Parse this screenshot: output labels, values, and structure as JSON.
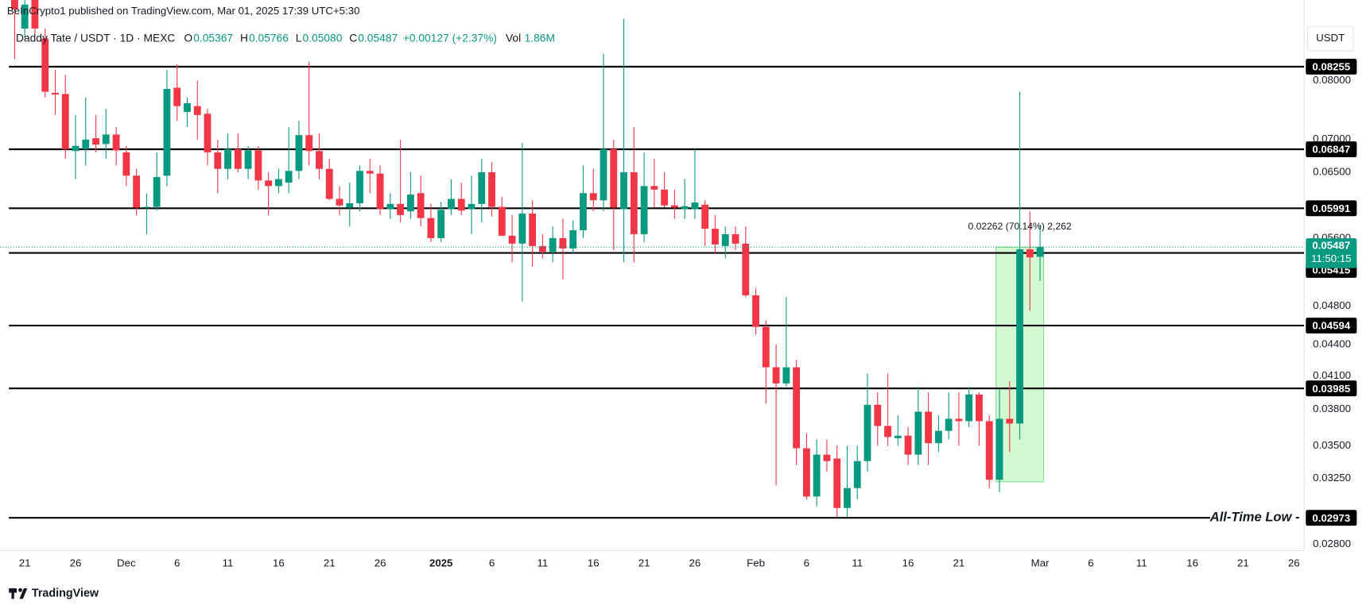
{
  "header": {
    "publisher": "BeInCrypto1 published on TradingView.com, Mar 01, 2025 17:39 UTC+5:30",
    "brand": "TradingView"
  },
  "legend": {
    "symbol": "Daddy Tate / USDT · 1D · MEXC",
    "items": [
      {
        "key": "O",
        "value": "0.05367"
      },
      {
        "key": "H",
        "value": "0.05766"
      },
      {
        "key": "L",
        "value": "0.05080"
      },
      {
        "key": "C",
        "value": "0.05487"
      }
    ],
    "change": "+0.00127 (+2.37%)",
    "volume_key": "Vol",
    "volume": "1.86M"
  },
  "chart_data": {
    "type": "candlestick",
    "currency": "USDT",
    "log_scale": true,
    "up_color": "#089981",
    "down_color": "#f23645",
    "x": [
      "2024-11-20",
      "2024-11-21",
      "2024-11-22",
      "2024-11-23",
      "2024-11-24",
      "2024-11-25",
      "2024-11-26",
      "2024-11-27",
      "2024-11-28",
      "2024-11-29",
      "2024-11-30",
      "2024-12-01",
      "2024-12-02",
      "2024-12-03",
      "2024-12-04",
      "2024-12-05",
      "2024-12-06",
      "2024-12-07",
      "2024-12-08",
      "2024-12-09",
      "2024-12-10",
      "2024-12-11",
      "2024-12-12",
      "2024-12-13",
      "2024-12-14",
      "2024-12-15",
      "2024-12-16",
      "2024-12-17",
      "2024-12-18",
      "2024-12-19",
      "2024-12-20",
      "2024-12-21",
      "2024-12-22",
      "2024-12-23",
      "2024-12-24",
      "2024-12-25",
      "2024-12-26",
      "2024-12-27",
      "2024-12-28",
      "2024-12-29",
      "2024-12-30",
      "2024-12-31",
      "2025-01-01",
      "2025-01-02",
      "2025-01-03",
      "2025-01-04",
      "2025-01-05",
      "2025-01-06",
      "2025-01-07",
      "2025-01-08",
      "2025-01-09",
      "2025-01-10",
      "2025-01-11",
      "2025-01-12",
      "2025-01-13",
      "2025-01-14",
      "2025-01-15",
      "2025-01-16",
      "2025-01-17",
      "2025-01-18",
      "2025-01-19",
      "2025-01-20",
      "2025-01-21",
      "2025-01-22",
      "2025-01-23",
      "2025-01-24",
      "2025-01-25",
      "2025-01-26",
      "2025-01-27",
      "2025-01-28",
      "2025-01-29",
      "2025-01-30",
      "2025-01-31",
      "2025-02-01",
      "2025-02-02",
      "2025-02-03",
      "2025-02-04",
      "2025-02-05",
      "2025-02-06",
      "2025-02-07",
      "2025-02-08",
      "2025-02-09",
      "2025-02-10",
      "2025-02-11",
      "2025-02-12",
      "2025-02-13",
      "2025-02-14",
      "2025-02-15",
      "2025-02-16",
      "2025-02-17",
      "2025-02-18",
      "2025-02-19",
      "2025-02-20",
      "2025-02-21",
      "2025-02-22",
      "2025-02-23",
      "2025-02-24",
      "2025-02-25",
      "2025-02-26",
      "2025-02-27",
      "2025-02-28",
      "2025-03-01"
    ],
    "open": [
      0.099,
      0.09,
      0.096,
      0.088,
      0.0778,
      0.0776,
      0.0682,
      0.0685,
      0.0702,
      0.0693,
      0.0708,
      0.068,
      0.0645,
      0.06,
      0.0601,
      0.0645,
      0.0787,
      0.0745,
      0.0755,
      0.0742,
      0.068,
      0.0655,
      0.0685,
      0.0655,
      0.0683,
      0.0638,
      0.063,
      0.0635,
      0.0652,
      0.0707,
      0.0682,
      0.0655,
      0.0612,
      0.06,
      0.0606,
      0.0652,
      0.0648,
      0.0598,
      0.0605,
      0.0595,
      0.062,
      0.0586,
      0.056,
      0.0598,
      0.0612,
      0.0598,
      0.0605,
      0.065,
      0.0601,
      0.0563,
      0.0553,
      0.0592,
      0.055,
      0.0543,
      0.056,
      0.0547,
      0.057,
      0.062,
      0.061,
      0.0685,
      0.0598,
      0.065,
      0.0565,
      0.063,
      0.0625,
      0.0603,
      0.0598,
      0.0598,
      0.0604,
      0.0572,
      0.055,
      0.0565,
      0.0553,
      0.0492,
      0.0458,
      0.0418,
      0.0403,
      0.0418,
      0.0348,
      0.0312,
      0.0343,
      0.034,
      0.0304,
      0.0318,
      0.0338,
      0.0384,
      0.0366,
      0.0356,
      0.0358,
      0.0343,
      0.0378,
      0.0352,
      0.0362,
      0.0372,
      0.037,
      0.0393,
      0.037,
      0.0324,
      0.0372,
      0.0368,
      0.0546,
      0.05367
    ],
    "high": [
      0.101,
      0.097,
      0.098,
      0.09,
      0.082,
      0.081,
      0.074,
      0.077,
      0.074,
      0.075,
      0.072,
      0.069,
      0.0655,
      0.062,
      0.068,
      0.082,
      0.083,
      0.077,
      0.08,
      0.075,
      0.07,
      0.071,
      0.071,
      0.069,
      0.069,
      0.065,
      0.0655,
      0.072,
      0.073,
      0.0835,
      0.071,
      0.067,
      0.063,
      0.0635,
      0.066,
      0.067,
      0.066,
      0.062,
      0.07,
      0.065,
      0.0645,
      0.0605,
      0.0608,
      0.064,
      0.0635,
      0.0645,
      0.067,
      0.0665,
      0.0615,
      0.059,
      0.0695,
      0.061,
      0.0565,
      0.0575,
      0.0585,
      0.0583,
      0.066,
      0.0655,
      0.085,
      0.07,
      0.092,
      0.072,
      0.068,
      0.067,
      0.065,
      0.0625,
      0.064,
      0.0685,
      0.061,
      0.059,
      0.0575,
      0.0575,
      0.0575,
      0.05,
      0.0465,
      0.044,
      0.049,
      0.0425,
      0.036,
      0.0355,
      0.0355,
      0.035,
      0.035,
      0.035,
      0.0412,
      0.0395,
      0.0412,
      0.0375,
      0.0365,
      0.04,
      0.0395,
      0.0375,
      0.0395,
      0.0395,
      0.04,
      0.0395,
      0.0375,
      0.0398,
      0.0405,
      0.078,
      0.0595,
      0.05766
    ],
    "low": [
      0.084,
      0.088,
      0.089,
      0.077,
      0.074,
      0.067,
      0.064,
      0.066,
      0.068,
      0.067,
      0.066,
      0.063,
      0.059,
      0.0565,
      0.0596,
      0.063,
      0.073,
      0.072,
      0.07,
      0.066,
      0.062,
      0.064,
      0.065,
      0.064,
      0.0625,
      0.059,
      0.062,
      0.062,
      0.064,
      0.066,
      0.064,
      0.061,
      0.059,
      0.0575,
      0.0595,
      0.062,
      0.059,
      0.0585,
      0.058,
      0.0585,
      0.0575,
      0.0555,
      0.0555,
      0.059,
      0.059,
      0.0565,
      0.058,
      0.0588,
      0.0565,
      0.053,
      0.0485,
      0.0525,
      0.0535,
      0.053,
      0.051,
      0.054,
      0.056,
      0.0595,
      0.0595,
      0.0545,
      0.053,
      0.053,
      0.0555,
      0.06,
      0.06,
      0.0585,
      0.0585,
      0.0585,
      0.055,
      0.054,
      0.0535,
      0.0545,
      0.049,
      0.045,
      0.0385,
      0.032,
      0.04,
      0.0335,
      0.031,
      0.0305,
      0.033,
      0.0298,
      0.0298,
      0.031,
      0.033,
      0.035,
      0.035,
      0.035,
      0.0335,
      0.0335,
      0.0335,
      0.0345,
      0.0355,
      0.035,
      0.0365,
      0.035,
      0.0318,
      0.0315,
      0.0345,
      0.0355,
      0.0475,
      0.0508
    ],
    "close": [
      0.094,
      0.095,
      0.09,
      0.078,
      0.0775,
      0.0685,
      0.069,
      0.07,
      0.0692,
      0.0708,
      0.0683,
      0.0645,
      0.06,
      0.0601,
      0.0643,
      0.0785,
      0.0755,
      0.076,
      0.074,
      0.068,
      0.0655,
      0.0685,
      0.0655,
      0.0683,
      0.0638,
      0.063,
      0.064,
      0.0652,
      0.0707,
      0.0682,
      0.0655,
      0.0612,
      0.0603,
      0.0606,
      0.0652,
      0.0648,
      0.0598,
      0.0605,
      0.059,
      0.0618,
      0.0586,
      0.056,
      0.0597,
      0.0612,
      0.0596,
      0.0605,
      0.065,
      0.0601,
      0.0563,
      0.0553,
      0.0592,
      0.055,
      0.0543,
      0.056,
      0.0547,
      0.057,
      0.062,
      0.061,
      0.0685,
      0.06,
      0.065,
      0.0565,
      0.063,
      0.0625,
      0.0603,
      0.06,
      0.0602,
      0.0607,
      0.0572,
      0.0552,
      0.0565,
      0.0553,
      0.0492,
      0.0458,
      0.0418,
      0.0403,
      0.0418,
      0.0348,
      0.0312,
      0.0343,
      0.0338,
      0.0304,
      0.0318,
      0.0338,
      0.0384,
      0.0366,
      0.0357,
      0.0358,
      0.0343,
      0.0378,
      0.0352,
      0.0362,
      0.0372,
      0.037,
      0.0393,
      0.037,
      0.0324,
      0.0372,
      0.0368,
      0.0546,
      0.0536,
      0.05487
    ],
    "xlim": [
      "2024-11-19",
      "2025-03-27"
    ],
    "xticks": [
      {
        "value": "2024-11-21",
        "label": "21"
      },
      {
        "value": "2024-11-26",
        "label": "26"
      },
      {
        "value": "2024-12-01",
        "label": "Dec"
      },
      {
        "value": "2024-12-06",
        "label": "6"
      },
      {
        "value": "2024-12-11",
        "label": "11"
      },
      {
        "value": "2024-12-16",
        "label": "16"
      },
      {
        "value": "2024-12-21",
        "label": "21"
      },
      {
        "value": "2024-12-26",
        "label": "26"
      },
      {
        "value": "2025-01-01",
        "label": "2025"
      },
      {
        "value": "2025-01-06",
        "label": "6"
      },
      {
        "value": "2025-01-11",
        "label": "11"
      },
      {
        "value": "2025-01-16",
        "label": "16"
      },
      {
        "value": "2025-01-21",
        "label": "21"
      },
      {
        "value": "2025-01-26",
        "label": "26"
      },
      {
        "value": "2025-02-01",
        "label": "Feb"
      },
      {
        "value": "2025-02-06",
        "label": "6"
      },
      {
        "value": "2025-02-11",
        "label": "11"
      },
      {
        "value": "2025-02-16",
        "label": "16"
      },
      {
        "value": "2025-02-21",
        "label": "21"
      },
      {
        "value": "2025-03-01",
        "label": "Mar"
      },
      {
        "value": "2025-03-06",
        "label": "6"
      },
      {
        "value": "2025-03-11",
        "label": "11"
      },
      {
        "value": "2025-03-16",
        "label": "16"
      },
      {
        "value": "2025-03-21",
        "label": "21"
      },
      {
        "value": "2025-03-26",
        "label": "26"
      }
    ],
    "ylim": [
      0.0276,
      0.096
    ],
    "yticks": [
      {
        "value": 0.08,
        "label": "0.08000"
      },
      {
        "value": 0.07,
        "label": "0.07000"
      },
      {
        "value": 0.065,
        "label": "0.06500"
      },
      {
        "value": 0.056,
        "label": "0.05600"
      },
      {
        "value": 0.048,
        "label": "0.04800"
      },
      {
        "value": 0.044,
        "label": "0.04400"
      },
      {
        "value": 0.041,
        "label": "0.04100"
      },
      {
        "value": 0.038,
        "label": "0.03800"
      },
      {
        "value": 0.035,
        "label": "0.03500"
      },
      {
        "value": 0.0325,
        "label": "0.03250"
      },
      {
        "value": 0.028,
        "label": "0.02800"
      }
    ],
    "levels": [
      0.08255,
      0.06847,
      0.05991,
      0.05415,
      0.04594,
      0.03985,
      0.02973
    ],
    "low_level_annotation": "All-Time Low -",
    "last_price": 0.05487,
    "countdown": "11:50:15",
    "measure": {
      "label": "0.02262 (70.14%) 2,262",
      "start": "2025-02-25",
      "end": "2025-03-01",
      "low": 0.03225,
      "high": 0.05487
    }
  }
}
